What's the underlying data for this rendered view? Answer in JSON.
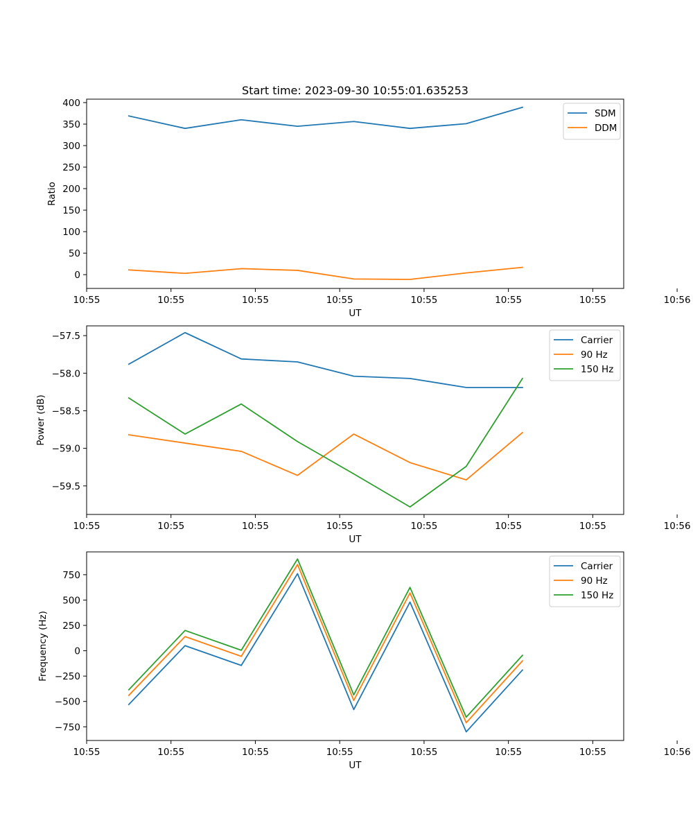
{
  "figure": {
    "title": "Start time: 2023-09-30 10:55:01.635253"
  },
  "chart_data": [
    {
      "type": "line",
      "title": "Start time: 2023-09-30 10:55:01.635253",
      "xlabel": "UT",
      "ylabel": "Ratio",
      "xlim": [
        -0.75,
        8.8
      ],
      "ylim": [
        -32,
        408
      ],
      "x": [
        0,
        1,
        2,
        3,
        4,
        5,
        6,
        7
      ],
      "x_ticks": [
        -0.75,
        0.75,
        2.25,
        3.75,
        5.25,
        6.75,
        8.25,
        9.75
      ],
      "x_tick_labels": [
        "10:55",
        "10:55",
        "10:55",
        "10:55",
        "10:55",
        "10:55",
        "10:55",
        "10:56"
      ],
      "y_ticks": [
        0,
        50,
        100,
        150,
        200,
        250,
        300,
        350,
        400
      ],
      "y_tick_labels": [
        "0",
        "50",
        "100",
        "150",
        "200",
        "250",
        "300",
        "350",
        "400"
      ],
      "legend_position": "top-right",
      "grid": false,
      "series": [
        {
          "name": "SDM",
          "color": "#1f77b4",
          "values": [
            369,
            340,
            360,
            345,
            356,
            340,
            351,
            389
          ]
        },
        {
          "name": "DDM",
          "color": "#ff7f0e",
          "values": [
            11,
            3,
            14,
            10,
            -10,
            -11,
            4,
            17
          ]
        }
      ]
    },
    {
      "type": "line",
      "title": "",
      "xlabel": "UT",
      "ylabel": "Power (dB)",
      "xlim": [
        -0.75,
        8.8
      ],
      "ylim": [
        -59.88,
        -57.37
      ],
      "x": [
        0,
        1,
        2,
        3,
        4,
        5,
        6,
        7
      ],
      "x_ticks": [
        -0.75,
        0.75,
        2.25,
        3.75,
        5.25,
        6.75,
        8.25,
        9.75
      ],
      "x_tick_labels": [
        "10:55",
        "10:55",
        "10:55",
        "10:55",
        "10:55",
        "10:55",
        "10:55",
        "10:56"
      ],
      "y_ticks": [
        -59.5,
        -59.0,
        -58.5,
        -58.0,
        -57.5
      ],
      "y_tick_labels": [
        "−59.5",
        "−59.0",
        "−58.5",
        "−58.0",
        "−57.5"
      ],
      "legend_position": "top-right",
      "grid": false,
      "series": [
        {
          "name": "Carrier",
          "color": "#1f77b4",
          "values": [
            -57.88,
            -57.46,
            -57.81,
            -57.85,
            -58.04,
            -58.07,
            -58.19,
            -58.19
          ]
        },
        {
          "name": "90 Hz",
          "color": "#ff7f0e",
          "values": [
            -58.82,
            -58.93,
            -59.04,
            -59.36,
            -58.81,
            -59.19,
            -59.42,
            -58.79
          ]
        },
        {
          "name": "150 Hz",
          "color": "#2ca02c",
          "values": [
            -58.33,
            -58.81,
            -58.41,
            -58.91,
            -59.34,
            -59.78,
            -59.24,
            -58.07
          ]
        }
      ]
    },
    {
      "type": "line",
      "title": "",
      "xlabel": "UT",
      "ylabel": "Frequency (Hz)",
      "xlim": [
        -0.75,
        8.8
      ],
      "ylim": [
        -885,
        975
      ],
      "x": [
        0,
        1,
        2,
        3,
        4,
        5,
        6,
        7
      ],
      "x_ticks": [
        -0.75,
        0.75,
        2.25,
        3.75,
        5.25,
        6.75,
        8.25,
        9.75
      ],
      "x_tick_labels": [
        "10:55",
        "10:55",
        "10:55",
        "10:55",
        "10:55",
        "10:55",
        "10:55",
        "10:56"
      ],
      "y_ticks": [
        -750,
        -500,
        -250,
        0,
        250,
        500,
        750
      ],
      "y_tick_labels": [
        "−750",
        "−500",
        "−250",
        "0",
        "250",
        "500",
        "750"
      ],
      "legend_position": "top-right",
      "grid": false,
      "series": [
        {
          "name": "Carrier",
          "color": "#1f77b4",
          "values": [
            -530,
            50,
            -145,
            760,
            -580,
            480,
            -800,
            -190
          ]
        },
        {
          "name": "90 Hz",
          "color": "#ff7f0e",
          "values": [
            -440,
            140,
            -55,
            850,
            -490,
            570,
            -710,
            -100
          ]
        },
        {
          "name": "150 Hz",
          "color": "#2ca02c",
          "values": [
            -385,
            200,
            5,
            905,
            -435,
            625,
            -655,
            -45
          ]
        }
      ]
    }
  ]
}
